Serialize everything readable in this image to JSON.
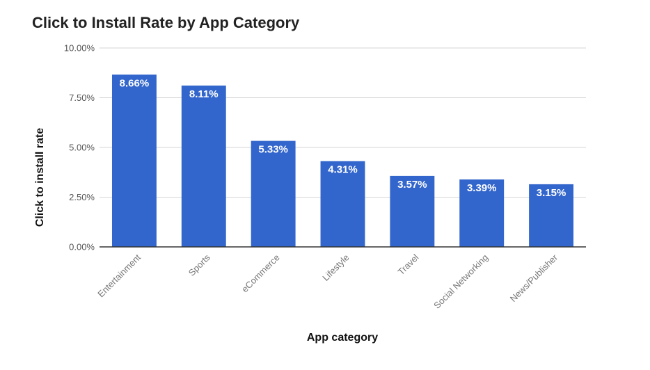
{
  "chart_data": {
    "type": "bar",
    "title": "Click to Install Rate by App Category",
    "xlabel": "App category",
    "ylabel": "Click to install rate",
    "categories": [
      "Entertainment",
      "Sports",
      "eCommerce",
      "Lifestyle",
      "Travel",
      "Social Networking",
      "News/Publisher"
    ],
    "values": [
      8.66,
      8.11,
      5.33,
      4.31,
      3.57,
      3.39,
      3.15
    ],
    "data_labels": [
      "8.66%",
      "8.11%",
      "5.33%",
      "4.31%",
      "3.57%",
      "3.39%",
      "3.15%"
    ],
    "ylim": [
      0,
      10
    ],
    "yticks": [
      0,
      2.5,
      5,
      7.5,
      10
    ],
    "ytick_labels": [
      "0.00%",
      "2.50%",
      "5.00%",
      "7.50%",
      "10.00%"
    ],
    "grid": true,
    "legend": "none",
    "bar_color": "#3366cc"
  }
}
